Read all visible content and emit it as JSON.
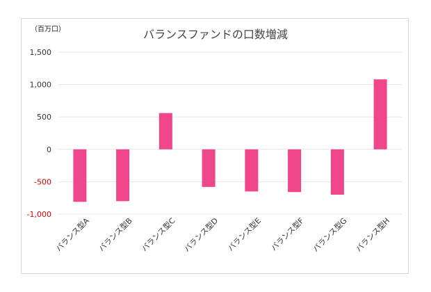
{
  "chart_data": {
    "type": "bar",
    "title": "バランスファンドの口数増減",
    "unit_label": "（百万口）",
    "categories": [
      "バランス型A",
      "バランス型B",
      "バランス型C",
      "バランス型D",
      "バランス型E",
      "バランス型F",
      "バランス型G",
      "バランス型H"
    ],
    "values": [
      -810,
      -800,
      560,
      -580,
      -650,
      -660,
      -700,
      1080
    ],
    "ylim": [
      -1000,
      1500
    ],
    "yticks": [
      {
        "value": 1500,
        "label": "1,500"
      },
      {
        "value": 1000,
        "label": "1,000"
      },
      {
        "value": 500,
        "label": "500"
      },
      {
        "value": 0,
        "label": "0"
      },
      {
        "value": -500,
        "label": "-500"
      },
      {
        "value": -1000,
        "label": "-1,000"
      }
    ],
    "grid": true,
    "legend": "none",
    "bar_color": "#f0468c",
    "negative_label_color": "#e00000",
    "axis_label_color": "#333333"
  }
}
